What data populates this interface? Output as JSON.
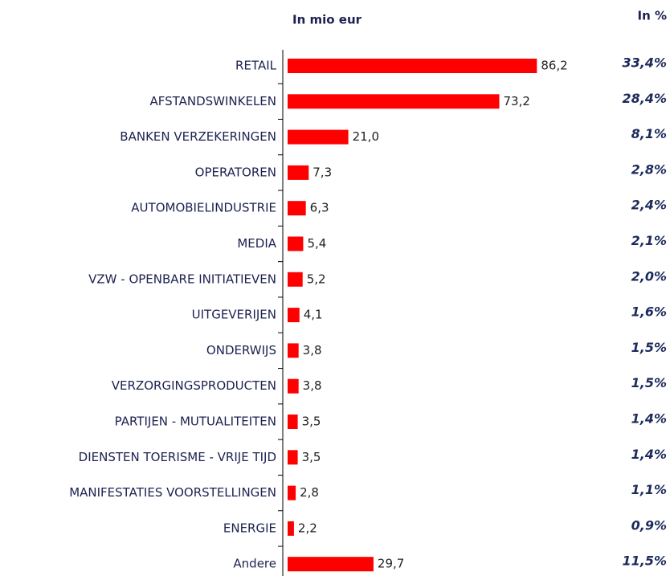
{
  "chart_data": {
    "type": "bar",
    "orientation": "horizontal",
    "value_header": "In mio eur",
    "categories": [
      "RETAIL",
      "AFSTANDSWINKELEN",
      "BANKEN  VERZEKERINGEN",
      "OPERATOREN",
      "AUTOMOBIELINDUSTRIE",
      "MEDIA",
      "VZW - OPENBARE INITIATIEVEN",
      "UITGEVERIJEN",
      "ONDERWIJS",
      "VERZORGINGSPRODUCTEN",
      "PARTIJEN - MUTUALITEITEN",
      "DIENSTEN TOERISME - VRIJE TIJD",
      "MANIFESTATIES VOORSTELLINGEN",
      "ENERGIE",
      "Andere"
    ],
    "values": [
      86.2,
      73.2,
      21.0,
      7.3,
      6.3,
      5.4,
      5.2,
      4.1,
      3.8,
      3.8,
      3.5,
      3.5,
      2.8,
      2.2,
      29.7
    ],
    "value_labels": [
      "86,2",
      "73,2",
      "21,0",
      "7,3",
      "6,3",
      "5,4",
      "5,2",
      "4,1",
      "3,8",
      "3,8",
      "3,5",
      "3,5",
      "2,8",
      "2,2",
      "29,7"
    ],
    "color": "#ff0000",
    "xlim": [
      0,
      100
    ],
    "share": {
      "header": "In %",
      "values": [
        33.4,
        28.4,
        8.1,
        2.8,
        2.4,
        2.1,
        2.0,
        1.6,
        1.5,
        1.5,
        1.4,
        1.4,
        1.1,
        0.9,
        11.5
      ],
      "value_labels": [
        "33,4%",
        "28,4%",
        "8,1%",
        "2,8%",
        "2,4%",
        "2,1%",
        "2,0%",
        "1,6%",
        "1,5%",
        "1,5%",
        "1,4%",
        "1,4%",
        "1,1%",
        "0,9%",
        "11,5%"
      ]
    }
  }
}
